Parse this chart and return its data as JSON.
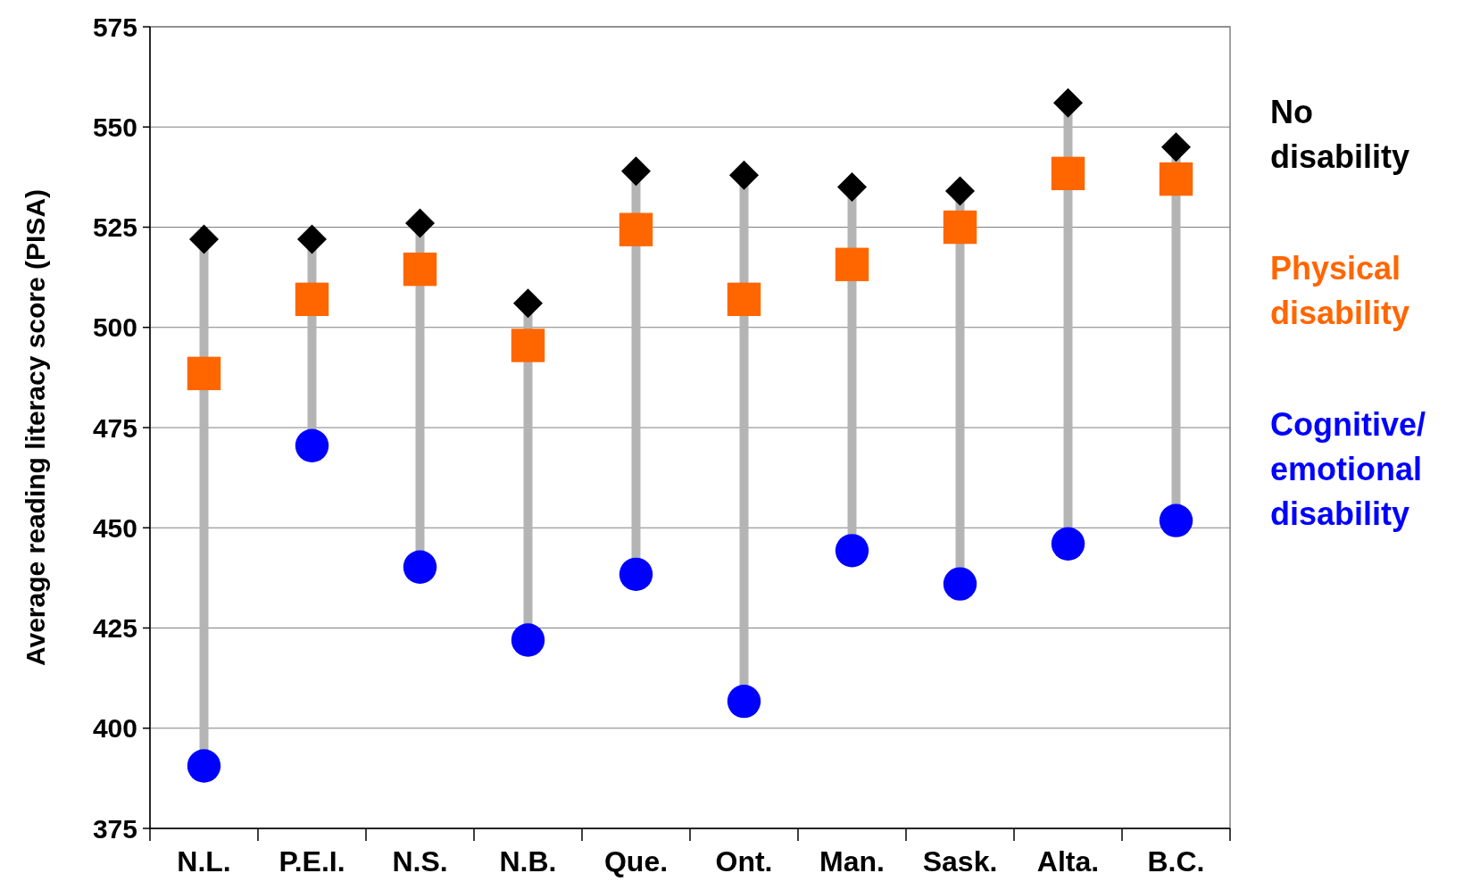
{
  "chart_data": {
    "type": "scatter",
    "ylabel": "Average reading literacy score (PISA)",
    "categories": [
      "N.L.",
      "P.E.I.",
      "N.S.",
      "N.B.",
      "Que.",
      "Ont.",
      "Man.",
      "Sask.",
      "Alta.",
      "B.C."
    ],
    "ylim": [
      375,
      575
    ],
    "yticks": [
      375,
      400,
      425,
      450,
      475,
      500,
      525,
      550,
      575
    ],
    "grid": "y",
    "legend": "right",
    "series": [
      {
        "name": "No disability",
        "color": "#000000",
        "marker": "diamond",
        "values": [
          522,
          522,
          526,
          506,
          539,
          538,
          535,
          534,
          556,
          545
        ]
      },
      {
        "name": "Physical disability",
        "color": "#ff6600",
        "marker": "square",
        "values": [
          488.5,
          507,
          514.5,
          495.5,
          524.4,
          507,
          515.7,
          525,
          538.4,
          537
        ]
      },
      {
        "name": "Cognitive/ emotional disability",
        "color": "#0000ff",
        "marker": "circle",
        "values": [
          390.6,
          470.5,
          440.2,
          422,
          438.4,
          406.7,
          444.3,
          436,
          446,
          451.8
        ]
      }
    ]
  }
}
